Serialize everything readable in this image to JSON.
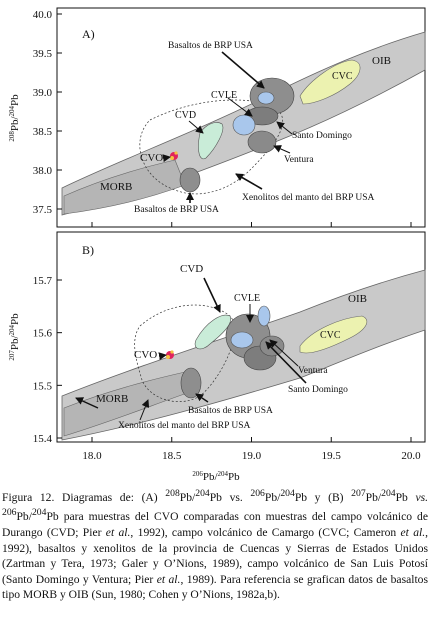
{
  "figure": {
    "panels": [
      {
        "letter": "A)",
        "ylabel_sup1": "208",
        "ylabel_el1": "Pb/",
        "ylabel_sup2": "204",
        "ylabel_el2": "Pb",
        "yticks": [
          "40.0",
          "39.5",
          "39.0",
          "38.5",
          "38.0",
          "37.5"
        ],
        "labels": {
          "oib": "OIB",
          "cvc": "CVC",
          "cvle": "CVLE",
          "cvd": "CVD",
          "cvo": "CVO",
          "morb": "MORB",
          "brp_top": "Basaltos de BRP USA",
          "brp_bottom": "Basaltos de BRP USA",
          "santo_domingo": "Santo Domingo",
          "ventura": "Ventura",
          "xenolitos": "Xenolitos del manto del BRP USA"
        }
      },
      {
        "letter": "B)",
        "ylabel_sup1": "207",
        "ylabel_el1": "Pb/",
        "ylabel_sup2": "204",
        "ylabel_el2": "Pb",
        "yticks": [
          "15.7",
          "15.6",
          "15.5",
          "15.4"
        ],
        "labels": {
          "oib": "OIB",
          "cvc": "CVC",
          "cvle": "CVLE",
          "cvd": "CVD",
          "cvo": "CVO",
          "morb": "MORB",
          "brp": "Basaltos de BRP USA",
          "santo_domingo": "Santo Domingo",
          "ventura": "Ventura",
          "xenolitos": "Xenolitos del manto del BRP USA"
        }
      }
    ],
    "xticks": [
      "18.0",
      "18.5",
      "19.0",
      "19.5",
      "20.0"
    ],
    "xlabel_sup1": "206",
    "xlabel_el1": "Pb/",
    "xlabel_sup2": "204",
    "xlabel_el2": "Pb",
    "colors": {
      "oib_field": "#c8c8c8",
      "morb_field": "#bdbdbd",
      "brp_basalt": "#8e8e8e",
      "cvc": "#ecf2b0",
      "cvd": "#c9ecd8",
      "cvle": "#a9c7ec",
      "cvo_sample": "#e0245e",
      "cvo_core": "#f5c242"
    }
  },
  "caption": {
    "s01": "Figura 12. Diagramas de: (A) ",
    "s02": "208",
    "s03": "Pb/",
    "s04": "204",
    "s05": "Pb vs. ",
    "s06": "206",
    "s07": "Pb/",
    "s08": "204",
    "s09": "Pb y (B) ",
    "s10": "207",
    "s11": "Pb/",
    "s12": "204",
    "s13": "Pb ",
    "s14": "vs. ",
    "s15": "206",
    "s16": "Pb/",
    "s17": "204",
    "s18": "Pb para muestras del CVO comparadas con muestras del campo volcánico de Durango (CVD; Pier ",
    "s19": "et al.",
    "s20": ", 1992), campo volcánico de Camargo (CVC; Cameron ",
    "s21": "et al.",
    "s22": ", 1992), basaltos y xenolitos de la provincia de Cuencas y Sierras de Estados Unidos (Zartman y Tera, 1973; Galer y O’Nions, 1989), campo volcánico de San Luis Potosí (Santo Domingo y Ventura; Pier ",
    "s23": "et al.",
    "s24": ", 1989). Para referencia se grafican datos de basaltos tipo MORB y OIB (Sun, 1980; Cohen y O’Nions, 1982a,b)."
  }
}
